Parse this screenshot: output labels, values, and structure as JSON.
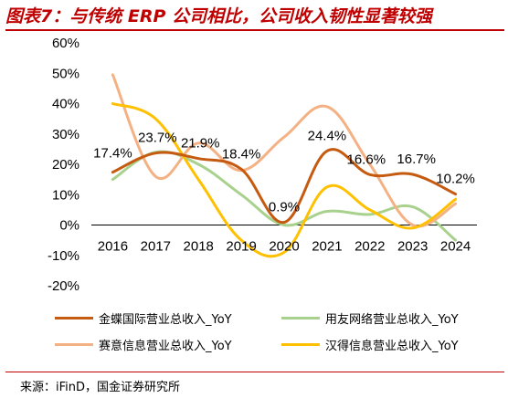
{
  "header": {
    "title": "图表7：与传统 ERP 公司相比，公司收入韧性显著较强"
  },
  "footer": {
    "source": "来源：iFinD，国金证券研究所"
  },
  "chart_data": {
    "type": "line",
    "categories": [
      "2016",
      "2017",
      "2018",
      "2019",
      "2020",
      "2021",
      "2022",
      "2023",
      "2024"
    ],
    "ylim": [
      -20,
      60
    ],
    "yticks": [
      "-20%",
      "-10%",
      "0%",
      "10%",
      "20%",
      "30%",
      "40%",
      "50%",
      "60%"
    ],
    "grid": false,
    "legend_position": "bottom",
    "series": [
      {
        "name": "金蝶国际营业总收入_YoY",
        "color": "#c55a11",
        "values": [
          17.4,
          23.7,
          21.9,
          18.4,
          0.9,
          24.4,
          16.6,
          16.7,
          10.2
        ],
        "labels": [
          "17.4%",
          "23.7%",
          "21.9%",
          "18.4%",
          "0.9%",
          "24.4%",
          "16.6%",
          "16.7%",
          "10.2%"
        ]
      },
      {
        "name": "用友网络营业总收入_YoY",
        "color": "#a9d18e",
        "values": [
          15,
          24,
          20,
          10,
          0,
          4.5,
          3.5,
          6,
          -5
        ]
      },
      {
        "name": "赛意信息营业总收入_YoY",
        "color": "#f4b183",
        "values": [
          49.5,
          16,
          27,
          18,
          29,
          39,
          20,
          0,
          7
        ]
      },
      {
        "name": "汉得信息营业总收入_YoY",
        "color": "#ffc000",
        "values": [
          40,
          35,
          15,
          -5,
          -9,
          12.5,
          5,
          -1,
          8.5
        ]
      }
    ]
  }
}
